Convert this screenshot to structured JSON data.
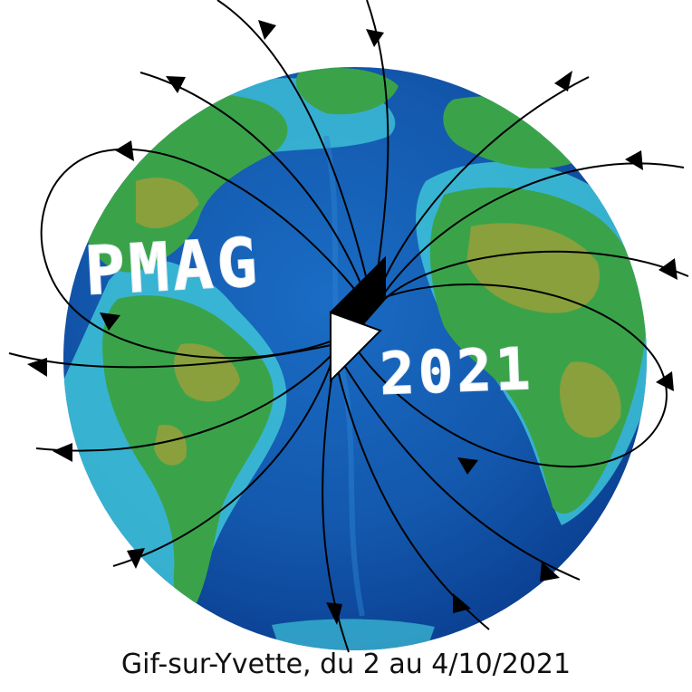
{
  "logo": {
    "line1": "PMAG",
    "line2": "2021"
  },
  "caption": "Gif-sur-Yvette, du 2 au 4/10/2021",
  "colors": {
    "ocean_deep": "#0a3d8f",
    "ocean": "#1560b8",
    "shelf": "#3ec3d8",
    "land": "#3aa34a",
    "highland": "#8aa03c",
    "field_line": "#000000",
    "dipole": "#000000"
  },
  "icons": {
    "dipole": "magnet-dipole-arrow-icon",
    "arrowheads": "triangle-arrowhead-icon"
  }
}
